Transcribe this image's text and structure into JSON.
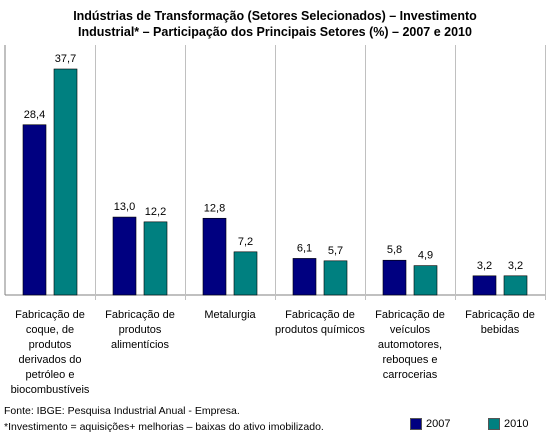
{
  "chart_data": {
    "type": "bar",
    "title_line1": "Indústrias de Transformação (Setores Selecionados) – Investimento",
    "title_line2": "Industrial* – Participação dos Principais Setores (%) – 2007 e 2010",
    "categories": [
      "Fabricação de coque, de produtos derivados do petróleo e biocombustíveis",
      "Fabricação de produtos alimentícios",
      "Metalurgia",
      "Fabricação de produtos químicos",
      "Fabricação de veículos automotores, reboques e carrocerias",
      "Fabricação de bebidas"
    ],
    "series": [
      {
        "name": "2007",
        "color": "#000080",
        "values": [
          28.4,
          13.0,
          12.8,
          6.1,
          5.8,
          3.2
        ],
        "labels": [
          "28,4",
          "13,0",
          "12,8",
          "6,1",
          "5,8",
          "3,2"
        ]
      },
      {
        "name": "2010",
        "color": "#008080",
        "values": [
          37.7,
          12.2,
          7.2,
          5.7,
          4.9,
          3.2
        ],
        "labels": [
          "37,7",
          "12,2",
          "7,2",
          "5,7",
          "4,9",
          "3,2"
        ]
      }
    ],
    "ylim": [
      0,
      40
    ],
    "grid": "vertical separators",
    "legend": "bottom-right"
  },
  "source_note": "Fonte: IBGE: Pesquisa Industrial Anual - Empresa.",
  "footnote": "*Investimento = aquisições+ melhorias – baixas do ativo imobilizado."
}
